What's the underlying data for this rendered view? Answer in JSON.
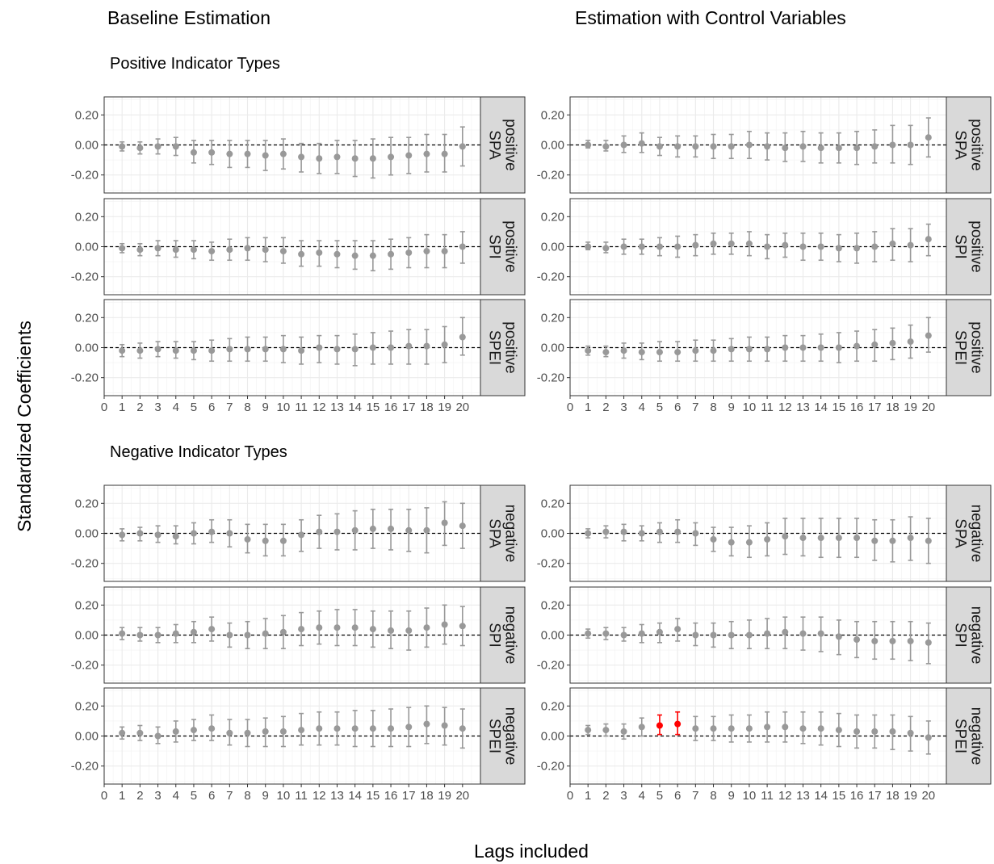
{
  "figure": {
    "col_titles": [
      "Baseline Estimation",
      "Estimation with Control Variables"
    ],
    "section_titles": [
      "Positive Indicator Types",
      "Negative Indicator Types"
    ],
    "ylabel": "Standardized Coefficients",
    "xlabel": "Lags included"
  },
  "chart_data": {
    "type": "scatter",
    "subtype": "point-errorbar facet grid",
    "x_ticks": [
      "0",
      "1",
      "2",
      "3",
      "4",
      "5",
      "6",
      "7",
      "8",
      "9",
      "10",
      "11",
      "12",
      "13",
      "14",
      "15",
      "16",
      "17",
      "18",
      "19",
      "20"
    ],
    "y_ticks": [
      "0.20",
      "0.00",
      "-0.20"
    ],
    "ylim": [
      -0.32,
      0.32
    ],
    "xlim": [
      0,
      21
    ],
    "reference_line": 0,
    "grid": true,
    "colors": {
      "normal": "#999999",
      "highlight": "#ff0000",
      "strip_bg": "#d9d9d9"
    },
    "panels": [
      {
        "column": "Baseline Estimation",
        "section": "Positive Indicator Types",
        "strip": [
          "positive",
          "SPA"
        ],
        "lags": [
          1,
          2,
          3,
          4,
          5,
          6,
          7,
          8,
          9,
          10,
          11,
          12,
          13,
          14,
          15,
          16,
          17,
          18,
          19,
          20
        ],
        "estimate": [
          -0.01,
          -0.02,
          -0.01,
          -0.01,
          -0.05,
          -0.05,
          -0.06,
          -0.06,
          -0.07,
          -0.06,
          -0.08,
          -0.09,
          -0.08,
          -0.09,
          -0.09,
          -0.08,
          -0.07,
          -0.06,
          -0.06,
          -0.01
        ],
        "ci_low": [
          -0.04,
          -0.06,
          -0.06,
          -0.07,
          -0.12,
          -0.13,
          -0.15,
          -0.15,
          -0.17,
          -0.16,
          -0.18,
          -0.19,
          -0.19,
          -0.21,
          -0.22,
          -0.2,
          -0.19,
          -0.18,
          -0.18,
          -0.14
        ],
        "ci_high": [
          0.02,
          0.02,
          0.04,
          0.05,
          0.03,
          0.03,
          0.03,
          0.03,
          0.03,
          0.04,
          0.01,
          0.01,
          0.03,
          0.03,
          0.04,
          0.05,
          0.05,
          0.07,
          0.07,
          0.12
        ],
        "highlight": []
      },
      {
        "column": "Estimation with Control Variables",
        "section": "Positive Indicator Types",
        "strip": [
          "positive",
          "SPA"
        ],
        "lags": [
          1,
          2,
          3,
          4,
          5,
          6,
          7,
          8,
          9,
          10,
          11,
          12,
          13,
          14,
          15,
          16,
          17,
          18,
          19,
          20
        ],
        "estimate": [
          0.0,
          -0.01,
          0.0,
          0.01,
          -0.01,
          -0.01,
          -0.01,
          -0.01,
          -0.01,
          0.0,
          -0.01,
          -0.02,
          -0.01,
          -0.02,
          -0.02,
          -0.02,
          -0.01,
          0.0,
          0.0,
          0.05
        ],
        "ci_low": [
          -0.02,
          -0.04,
          -0.05,
          -0.05,
          -0.07,
          -0.08,
          -0.08,
          -0.09,
          -0.09,
          -0.09,
          -0.1,
          -0.11,
          -0.11,
          -0.12,
          -0.12,
          -0.13,
          -0.12,
          -0.12,
          -0.13,
          -0.08
        ],
        "ci_high": [
          0.03,
          0.03,
          0.06,
          0.08,
          0.05,
          0.06,
          0.06,
          0.07,
          0.07,
          0.09,
          0.08,
          0.08,
          0.09,
          0.08,
          0.08,
          0.09,
          0.1,
          0.13,
          0.13,
          0.18
        ],
        "highlight": []
      },
      {
        "column": "Baseline Estimation",
        "section": "Positive Indicator Types",
        "strip": [
          "positive",
          "SPI"
        ],
        "lags": [
          1,
          2,
          3,
          4,
          5,
          6,
          7,
          8,
          9,
          10,
          11,
          12,
          13,
          14,
          15,
          16,
          17,
          18,
          19,
          20
        ],
        "estimate": [
          -0.01,
          -0.02,
          -0.01,
          -0.02,
          -0.02,
          -0.03,
          -0.02,
          -0.01,
          -0.02,
          -0.03,
          -0.05,
          -0.04,
          -0.05,
          -0.06,
          -0.06,
          -0.05,
          -0.04,
          -0.03,
          -0.03,
          0.0
        ],
        "ci_low": [
          -0.04,
          -0.06,
          -0.06,
          -0.07,
          -0.08,
          -0.09,
          -0.09,
          -0.09,
          -0.1,
          -0.11,
          -0.13,
          -0.13,
          -0.14,
          -0.15,
          -0.16,
          -0.15,
          -0.14,
          -0.14,
          -0.14,
          -0.11
        ],
        "ci_high": [
          0.02,
          0.02,
          0.04,
          0.04,
          0.04,
          0.03,
          0.05,
          0.06,
          0.06,
          0.06,
          0.04,
          0.04,
          0.04,
          0.04,
          0.04,
          0.05,
          0.06,
          0.08,
          0.08,
          0.1
        ],
        "highlight": []
      },
      {
        "column": "Estimation with Control Variables",
        "section": "Positive Indicator Types",
        "strip": [
          "positive",
          "SPI"
        ],
        "lags": [
          1,
          2,
          3,
          4,
          5,
          6,
          7,
          8,
          9,
          10,
          11,
          12,
          13,
          14,
          15,
          16,
          17,
          18,
          19,
          20
        ],
        "estimate": [
          0.0,
          -0.01,
          0.0,
          0.0,
          0.0,
          0.0,
          0.01,
          0.02,
          0.02,
          0.02,
          0.0,
          0.01,
          0.0,
          0.0,
          -0.01,
          -0.01,
          0.0,
          0.02,
          0.01,
          0.05
        ],
        "ci_low": [
          -0.02,
          -0.04,
          -0.05,
          -0.05,
          -0.06,
          -0.07,
          -0.06,
          -0.05,
          -0.05,
          -0.06,
          -0.08,
          -0.07,
          -0.09,
          -0.09,
          -0.1,
          -0.11,
          -0.1,
          -0.09,
          -0.1,
          -0.06
        ],
        "ci_high": [
          0.03,
          0.03,
          0.05,
          0.05,
          0.06,
          0.07,
          0.08,
          0.09,
          0.09,
          0.1,
          0.08,
          0.09,
          0.09,
          0.09,
          0.08,
          0.09,
          0.1,
          0.12,
          0.12,
          0.15
        ],
        "highlight": []
      },
      {
        "column": "Baseline Estimation",
        "section": "Positive Indicator Types",
        "strip": [
          "positive",
          "SPEI"
        ],
        "lags": [
          1,
          2,
          3,
          4,
          5,
          6,
          7,
          8,
          9,
          10,
          11,
          12,
          13,
          14,
          15,
          16,
          17,
          18,
          19,
          20
        ],
        "estimate": [
          -0.02,
          -0.02,
          -0.01,
          -0.02,
          -0.02,
          -0.02,
          -0.01,
          -0.01,
          -0.01,
          -0.01,
          -0.02,
          0.0,
          -0.01,
          -0.01,
          0.0,
          0.0,
          0.01,
          0.01,
          0.02,
          0.07
        ],
        "ci_low": [
          -0.06,
          -0.07,
          -0.06,
          -0.07,
          -0.08,
          -0.09,
          -0.09,
          -0.09,
          -0.09,
          -0.1,
          -0.11,
          -0.1,
          -0.11,
          -0.12,
          -0.11,
          -0.11,
          -0.11,
          -0.11,
          -0.1,
          -0.05
        ],
        "ci_high": [
          0.02,
          0.03,
          0.04,
          0.04,
          0.04,
          0.05,
          0.06,
          0.07,
          0.07,
          0.08,
          0.07,
          0.08,
          0.08,
          0.09,
          0.1,
          0.11,
          0.12,
          0.12,
          0.14,
          0.2
        ],
        "highlight": []
      },
      {
        "column": "Estimation with Control Variables",
        "section": "Positive Indicator Types",
        "strip": [
          "positive",
          "SPEI"
        ],
        "lags": [
          1,
          2,
          3,
          4,
          5,
          6,
          7,
          8,
          9,
          10,
          11,
          12,
          13,
          14,
          15,
          16,
          17,
          18,
          19,
          20
        ],
        "estimate": [
          -0.02,
          -0.03,
          -0.02,
          -0.03,
          -0.03,
          -0.03,
          -0.02,
          -0.02,
          -0.01,
          -0.01,
          -0.01,
          0.0,
          0.0,
          0.0,
          0.0,
          0.01,
          0.02,
          0.03,
          0.04,
          0.08
        ],
        "ci_low": [
          -0.05,
          -0.06,
          -0.07,
          -0.08,
          -0.09,
          -0.09,
          -0.09,
          -0.09,
          -0.09,
          -0.09,
          -0.09,
          -0.09,
          -0.09,
          -0.09,
          -0.1,
          -0.09,
          -0.09,
          -0.08,
          -0.07,
          -0.03
        ],
        "ci_high": [
          0.01,
          0.01,
          0.03,
          0.03,
          0.04,
          0.04,
          0.05,
          0.05,
          0.06,
          0.07,
          0.07,
          0.08,
          0.08,
          0.09,
          0.1,
          0.11,
          0.12,
          0.13,
          0.15,
          0.2
        ],
        "highlight": []
      },
      {
        "column": "Baseline Estimation",
        "section": "Negative Indicator Types",
        "strip": [
          "negative",
          "SPA"
        ],
        "lags": [
          1,
          2,
          3,
          4,
          5,
          6,
          7,
          8,
          9,
          10,
          11,
          12,
          13,
          14,
          15,
          16,
          17,
          18,
          19,
          20
        ],
        "estimate": [
          -0.01,
          0.0,
          -0.01,
          -0.02,
          0.0,
          0.01,
          0.0,
          -0.04,
          -0.05,
          -0.05,
          -0.01,
          0.01,
          0.01,
          0.02,
          0.03,
          0.03,
          0.02,
          0.02,
          0.07,
          0.05
        ],
        "ci_low": [
          -0.05,
          -0.05,
          -0.06,
          -0.07,
          -0.07,
          -0.06,
          -0.09,
          -0.13,
          -0.15,
          -0.15,
          -0.12,
          -0.1,
          -0.11,
          -0.11,
          -0.1,
          -0.11,
          -0.12,
          -0.13,
          -0.08,
          -0.1
        ],
        "ci_high": [
          0.03,
          0.04,
          0.05,
          0.05,
          0.07,
          0.09,
          0.09,
          0.06,
          0.06,
          0.06,
          0.09,
          0.12,
          0.13,
          0.15,
          0.16,
          0.16,
          0.16,
          0.17,
          0.21,
          0.2
        ],
        "highlight": []
      },
      {
        "column": "Estimation with Control Variables",
        "section": "Negative Indicator Types",
        "strip": [
          "negative",
          "SPA"
        ],
        "lags": [
          1,
          2,
          3,
          4,
          5,
          6,
          7,
          8,
          9,
          10,
          11,
          12,
          13,
          14,
          15,
          16,
          17,
          18,
          19,
          20
        ],
        "estimate": [
          0.0,
          0.01,
          0.01,
          0.0,
          0.01,
          0.01,
          0.0,
          -0.04,
          -0.06,
          -0.06,
          -0.04,
          -0.02,
          -0.03,
          -0.03,
          -0.03,
          -0.03,
          -0.05,
          -0.05,
          -0.03,
          -0.05
        ],
        "ci_low": [
          -0.03,
          -0.03,
          -0.05,
          -0.05,
          -0.06,
          -0.06,
          -0.08,
          -0.12,
          -0.15,
          -0.16,
          -0.15,
          -0.14,
          -0.15,
          -0.16,
          -0.16,
          -0.16,
          -0.18,
          -0.19,
          -0.18,
          -0.2
        ],
        "ci_high": [
          0.03,
          0.05,
          0.06,
          0.05,
          0.07,
          0.09,
          0.07,
          0.04,
          0.04,
          0.05,
          0.07,
          0.1,
          0.1,
          0.1,
          0.1,
          0.1,
          0.09,
          0.09,
          0.11,
          0.1
        ],
        "highlight": []
      },
      {
        "column": "Baseline Estimation",
        "section": "Negative Indicator Types",
        "strip": [
          "negative",
          "SPI"
        ],
        "lags": [
          1,
          2,
          3,
          4,
          5,
          6,
          7,
          8,
          9,
          10,
          11,
          12,
          13,
          14,
          15,
          16,
          17,
          18,
          19,
          20
        ],
        "estimate": [
          0.01,
          0.0,
          0.0,
          0.01,
          0.02,
          0.04,
          0.0,
          0.0,
          0.01,
          0.02,
          0.04,
          0.05,
          0.05,
          0.05,
          0.04,
          0.03,
          0.03,
          0.05,
          0.07,
          0.06
        ],
        "ci_low": [
          -0.03,
          -0.04,
          -0.05,
          -0.05,
          -0.05,
          -0.04,
          -0.08,
          -0.09,
          -0.09,
          -0.09,
          -0.07,
          -0.06,
          -0.07,
          -0.07,
          -0.08,
          -0.09,
          -0.1,
          -0.08,
          -0.06,
          -0.07
        ],
        "ci_high": [
          0.05,
          0.05,
          0.05,
          0.07,
          0.09,
          0.12,
          0.08,
          0.09,
          0.11,
          0.13,
          0.15,
          0.16,
          0.17,
          0.17,
          0.16,
          0.16,
          0.16,
          0.18,
          0.2,
          0.19
        ],
        "highlight": []
      },
      {
        "column": "Estimation with Control Variables",
        "section": "Negative Indicator Types",
        "strip": [
          "negative",
          "SPI"
        ],
        "lags": [
          1,
          2,
          3,
          4,
          5,
          6,
          7,
          8,
          9,
          10,
          11,
          12,
          13,
          14,
          15,
          16,
          17,
          18,
          19,
          20
        ],
        "estimate": [
          0.01,
          0.01,
          0.0,
          0.01,
          0.02,
          0.04,
          0.0,
          0.0,
          0.0,
          0.0,
          0.01,
          0.02,
          0.01,
          0.01,
          -0.01,
          -0.03,
          -0.04,
          -0.04,
          -0.04,
          -0.05
        ],
        "ci_low": [
          -0.02,
          -0.03,
          -0.04,
          -0.05,
          -0.05,
          -0.04,
          -0.07,
          -0.08,
          -0.09,
          -0.09,
          -0.09,
          -0.09,
          -0.1,
          -0.11,
          -0.13,
          -0.15,
          -0.16,
          -0.16,
          -0.17,
          -0.19
        ],
        "ci_high": [
          0.04,
          0.05,
          0.05,
          0.07,
          0.08,
          0.11,
          0.08,
          0.08,
          0.09,
          0.1,
          0.11,
          0.12,
          0.12,
          0.12,
          0.1,
          0.09,
          0.09,
          0.09,
          0.09,
          0.08
        ],
        "highlight": []
      },
      {
        "column": "Baseline Estimation",
        "section": "Negative Indicator Types",
        "strip": [
          "negative",
          "SPEI"
        ],
        "lags": [
          1,
          2,
          3,
          4,
          5,
          6,
          7,
          8,
          9,
          10,
          11,
          12,
          13,
          14,
          15,
          16,
          17,
          18,
          19,
          20
        ],
        "estimate": [
          0.02,
          0.02,
          0.0,
          0.03,
          0.04,
          0.05,
          0.02,
          0.02,
          0.03,
          0.03,
          0.04,
          0.05,
          0.05,
          0.05,
          0.05,
          0.05,
          0.06,
          0.08,
          0.07,
          0.05
        ],
        "ci_low": [
          -0.02,
          -0.03,
          -0.05,
          -0.04,
          -0.03,
          -0.03,
          -0.06,
          -0.07,
          -0.07,
          -0.07,
          -0.06,
          -0.06,
          -0.06,
          -0.07,
          -0.07,
          -0.07,
          -0.07,
          -0.05,
          -0.06,
          -0.08
        ],
        "ci_high": [
          0.06,
          0.07,
          0.06,
          0.1,
          0.11,
          0.14,
          0.11,
          0.11,
          0.12,
          0.13,
          0.15,
          0.16,
          0.16,
          0.17,
          0.17,
          0.18,
          0.19,
          0.2,
          0.19,
          0.18
        ],
        "highlight": []
      },
      {
        "column": "Estimation with Control Variables",
        "section": "Negative Indicator Types",
        "strip": [
          "negative",
          "SPEI"
        ],
        "lags": [
          1,
          2,
          3,
          4,
          5,
          6,
          7,
          8,
          9,
          10,
          11,
          12,
          13,
          14,
          15,
          16,
          17,
          18,
          19,
          20
        ],
        "estimate": [
          0.04,
          0.04,
          0.03,
          0.06,
          0.07,
          0.08,
          0.05,
          0.05,
          0.05,
          0.05,
          0.06,
          0.06,
          0.05,
          0.05,
          0.04,
          0.03,
          0.03,
          0.03,
          0.02,
          -0.01
        ],
        "ci_low": [
          0.01,
          0.0,
          -0.02,
          0.0,
          0.01,
          0.01,
          -0.03,
          -0.03,
          -0.04,
          -0.04,
          -0.04,
          -0.04,
          -0.05,
          -0.06,
          -0.07,
          -0.08,
          -0.08,
          -0.09,
          -0.1,
          -0.12
        ],
        "ci_high": [
          0.07,
          0.08,
          0.08,
          0.12,
          0.14,
          0.16,
          0.13,
          0.13,
          0.14,
          0.14,
          0.16,
          0.16,
          0.16,
          0.16,
          0.15,
          0.14,
          0.14,
          0.14,
          0.13,
          0.1
        ],
        "highlight": [
          5,
          6
        ]
      }
    ]
  }
}
